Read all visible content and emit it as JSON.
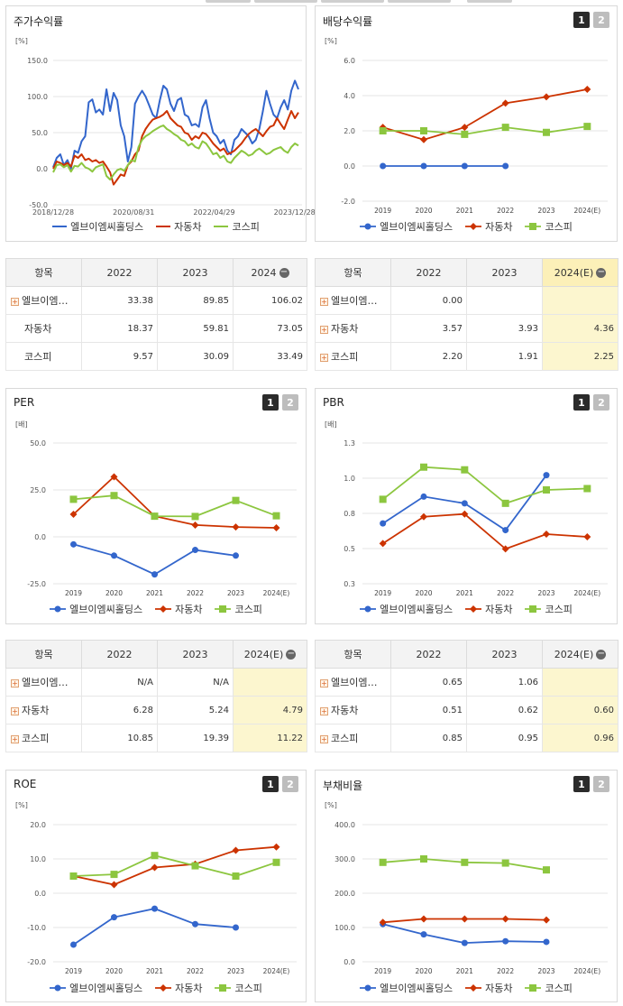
{
  "colors": {
    "ebm": "#3366cc",
    "auto": "#cc3300",
    "kospi": "#8cc63f"
  },
  "legend_names": {
    "ebm": "엘브이엠씨홀딩스",
    "auto": "자동차",
    "kospi": "코스피"
  },
  "tabs": [
    "1",
    "2"
  ],
  "panels": {
    "stock": {
      "title": "주가수익률",
      "unit": "[%]",
      "chart_data": {
        "type": "line",
        "x_tick_labels": [
          "2018/12/28",
          "2020/08/31",
          "2022/04/29",
          "2023/12/28"
        ],
        "y_ticks": [
          "150.0",
          "100.0",
          "50.0",
          "0.0",
          "-50.0"
        ],
        "ylim": [
          -50,
          150
        ],
        "series": [
          {
            "name": "엘브이엠씨홀딩스",
            "values": [
              2,
              15,
              20,
              5,
              12,
              0,
              25,
              22,
              38,
              45,
              92,
              96,
              78,
              82,
              75,
              110,
              80,
              105,
              95,
              60,
              45,
              10,
              30,
              90,
              100,
              108,
              100,
              88,
              75,
              70,
              95,
              115,
              110,
              90,
              80,
              95,
              98,
              75,
              72,
              60,
              62,
              58,
              85,
              95,
              70,
              50,
              45,
              35,
              40,
              25,
              20,
              40,
              45,
              55,
              50,
              45,
              35,
              40,
              55,
              80,
              108,
              90,
              75,
              70,
              85,
              95,
              82,
              108,
              122,
              110
            ]
          },
          {
            "name": "자동차",
            "values": [
              0,
              10,
              8,
              5,
              8,
              3,
              18,
              15,
              20,
              12,
              14,
              10,
              12,
              8,
              10,
              3,
              -5,
              -22,
              -15,
              -8,
              -10,
              5,
              10,
              20,
              25,
              45,
              55,
              62,
              68,
              70,
              72,
              75,
              80,
              70,
              65,
              60,
              58,
              50,
              48,
              40,
              45,
              42,
              50,
              48,
              42,
              35,
              30,
              25,
              28,
              20,
              22,
              25,
              30,
              35,
              42,
              48,
              52,
              55,
              50,
              45,
              52,
              58,
              60,
              70,
              62,
              55,
              68,
              80,
              70,
              78
            ]
          },
          {
            "name": "코스피",
            "values": [
              -5,
              5,
              6,
              2,
              5,
              -4,
              4,
              3,
              8,
              2,
              0,
              -4,
              2,
              4,
              6,
              -10,
              -15,
              -8,
              -2,
              0,
              -3,
              5,
              12,
              10,
              30,
              40,
              45,
              48,
              52,
              55,
              58,
              60,
              55,
              52,
              48,
              45,
              40,
              38,
              32,
              35,
              30,
              28,
              38,
              35,
              28,
              20,
              22,
              15,
              18,
              10,
              8,
              15,
              20,
              25,
              22,
              18,
              20,
              25,
              28,
              24,
              20,
              22,
              26,
              28,
              30,
              25,
              22,
              30,
              35,
              32
            ]
          }
        ]
      }
    },
    "dividend": {
      "title": "배당수익률",
      "unit": "[%]",
      "chart_data": {
        "type": "line",
        "categories": [
          "2019",
          "2020",
          "2021",
          "2022",
          "2023",
          "2024(E)"
        ],
        "y_ticks": [
          "6.0",
          "4.0",
          "2.0",
          "0.0",
          "-2.0"
        ],
        "ylim": [
          -2,
          6
        ],
        "series": [
          {
            "name": "엘브이엠씨홀딩스",
            "values": [
              0,
              0,
              0,
              0,
              null,
              null
            ]
          },
          {
            "name": "자동차",
            "values": [
              2.2,
              1.5,
              2.2,
              3.57,
              3.93,
              4.36
            ]
          },
          {
            "name": "코스피",
            "values": [
              2.0,
              2.0,
              1.8,
              2.2,
              1.91,
              2.25
            ]
          }
        ]
      }
    },
    "per": {
      "title": "PER",
      "unit": "[배]",
      "chart_data": {
        "type": "line",
        "categories": [
          "2019",
          "2020",
          "2021",
          "2022",
          "2023",
          "2024(E)"
        ],
        "y_ticks": [
          "50.0",
          "25.0",
          "0.0",
          "-25.0"
        ],
        "ylim": [
          -25,
          50
        ],
        "series": [
          {
            "name": "엘브이엠씨홀딩스",
            "values": [
              -4,
              -10,
              -20,
              -7,
              -10,
              null
            ]
          },
          {
            "name": "자동차",
            "values": [
              12,
              32,
              11,
              6.28,
              5.24,
              4.79
            ]
          },
          {
            "name": "코스피",
            "values": [
              20,
              22,
              11,
              10.85,
              19.39,
              11.22
            ]
          }
        ]
      }
    },
    "pbr": {
      "title": "PBR",
      "unit": "[배]",
      "chart_data": {
        "type": "line",
        "categories": [
          "2019",
          "2020",
          "2021",
          "2022",
          "2023",
          "2024(E)"
        ],
        "y_ticks": [
          "1.3",
          "1.0",
          "0.8",
          "0.5",
          "0.3"
        ],
        "ylim": [
          0.25,
          1.3
        ],
        "series": [
          {
            "name": "엘브이엠씨홀딩스",
            "values": [
              0.7,
              0.9,
              0.85,
              0.65,
              1.06,
              null
            ]
          },
          {
            "name": "자동차",
            "values": [
              0.55,
              0.75,
              0.77,
              0.51,
              0.62,
              0.6
            ]
          },
          {
            "name": "코스피",
            "values": [
              0.88,
              1.12,
              1.1,
              0.85,
              0.95,
              0.96
            ]
          }
        ]
      }
    },
    "roe": {
      "title": "ROE",
      "unit": "[%]",
      "chart_data": {
        "type": "line",
        "categories": [
          "2019",
          "2020",
          "2021",
          "2022",
          "2023",
          "2024(E)"
        ],
        "y_ticks": [
          "20.0",
          "10.0",
          "0.0",
          "-10.0",
          "-20.0"
        ],
        "ylim": [
          -20,
          20
        ],
        "series": [
          {
            "name": "엘브이엠씨홀딩스",
            "values": [
              -15,
              -7,
              -4.5,
              -9,
              -10,
              null
            ]
          },
          {
            "name": "자동차",
            "values": [
              5,
              2.5,
              7.5,
              8.5,
              12.5,
              13.5
            ]
          },
          {
            "name": "코스피",
            "values": [
              5,
              5.5,
              11,
              8,
              5,
              9
            ]
          }
        ]
      }
    },
    "debt": {
      "title": "부채비율",
      "unit": "[%]",
      "chart_data": {
        "type": "line",
        "categories": [
          "2019",
          "2020",
          "2021",
          "2022",
          "2023",
          "2024(E)"
        ],
        "y_ticks": [
          "400.0",
          "300.0",
          "200.0",
          "100.0",
          "0.0"
        ],
        "ylim": [
          0,
          400
        ],
        "series": [
          {
            "name": "엘브이엠씨홀딩스",
            "values": [
              110,
              80,
              55,
              60,
              58,
              null
            ]
          },
          {
            "name": "자동차",
            "values": [
              115,
              125,
              125,
              125,
              122,
              null
            ]
          },
          {
            "name": "코스피",
            "values": [
              290,
              300,
              290,
              288,
              268,
              null
            ]
          }
        ]
      }
    }
  },
  "tables": {
    "stock": {
      "headers": [
        "항목",
        "2022",
        "2023",
        "2024"
      ],
      "rows": [
        {
          "name": "엘브이엠…",
          "values": [
            "33.38",
            "89.85",
            "106.02"
          ],
          "plus": true
        },
        {
          "name": "자동차",
          "values": [
            "18.37",
            "59.81",
            "73.05"
          ],
          "plus": false
        },
        {
          "name": "코스피",
          "values": [
            "9.57",
            "30.09",
            "33.49"
          ],
          "plus": false
        }
      ]
    },
    "dividend": {
      "headers": [
        "항목",
        "2022",
        "2023",
        "2024(E)"
      ],
      "rows": [
        {
          "name": "엘브이엠…",
          "values": [
            "0.00",
            "",
            ""
          ],
          "plus": true
        },
        {
          "name": "자동차",
          "values": [
            "3.57",
            "3.93",
            "4.36"
          ],
          "plus": true
        },
        {
          "name": "코스피",
          "values": [
            "2.20",
            "1.91",
            "2.25"
          ],
          "plus": true
        }
      ]
    },
    "per": {
      "headers": [
        "항목",
        "2022",
        "2023",
        "2024(E)"
      ],
      "rows": [
        {
          "name": "엘브이엠…",
          "values": [
            "N/A",
            "N/A",
            ""
          ],
          "plus": true
        },
        {
          "name": "자동차",
          "values": [
            "6.28",
            "5.24",
            "4.79"
          ],
          "plus": true
        },
        {
          "name": "코스피",
          "values": [
            "10.85",
            "19.39",
            "11.22"
          ],
          "plus": true
        }
      ]
    },
    "pbr": {
      "headers": [
        "항목",
        "2022",
        "2023",
        "2024(E)"
      ],
      "rows": [
        {
          "name": "엘브이엠…",
          "values": [
            "0.65",
            "1.06",
            ""
          ],
          "plus": true
        },
        {
          "name": "자동차",
          "values": [
            "0.51",
            "0.62",
            "0.60"
          ],
          "plus": true
        },
        {
          "name": "코스피",
          "values": [
            "0.85",
            "0.95",
            "0.96"
          ],
          "plus": true
        }
      ]
    }
  }
}
